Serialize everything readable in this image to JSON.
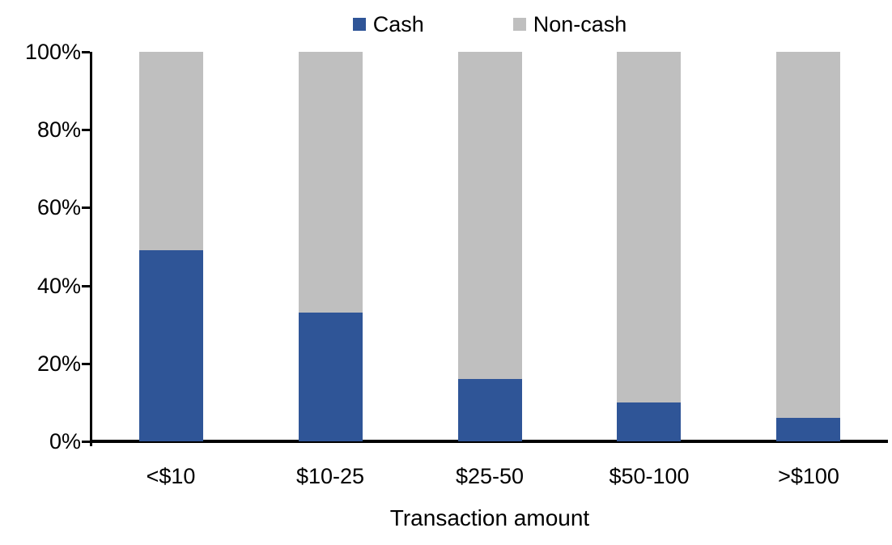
{
  "chart_data": {
    "type": "bar",
    "variant": "stacked-percent",
    "title": "",
    "xlabel": "Transaction amount",
    "ylabel": "",
    "categories": [
      "<$10",
      "$10-25",
      "$25-50",
      "$50-100",
      ">$100"
    ],
    "series": [
      {
        "name": "Cash",
        "color": "#2F5597",
        "values": [
          49,
          33,
          16,
          10,
          6
        ]
      },
      {
        "name": "Non-cash",
        "color": "#BFBFBF",
        "values": [
          51,
          67,
          84,
          90,
          94
        ]
      }
    ],
    "ylim": [
      0,
      100
    ],
    "yticks": [
      "0%",
      "20%",
      "40%",
      "60%",
      "80%",
      "100%"
    ],
    "grid": false,
    "legend_position": "top",
    "axis_color": "#000000",
    "text_color": "#000000"
  }
}
